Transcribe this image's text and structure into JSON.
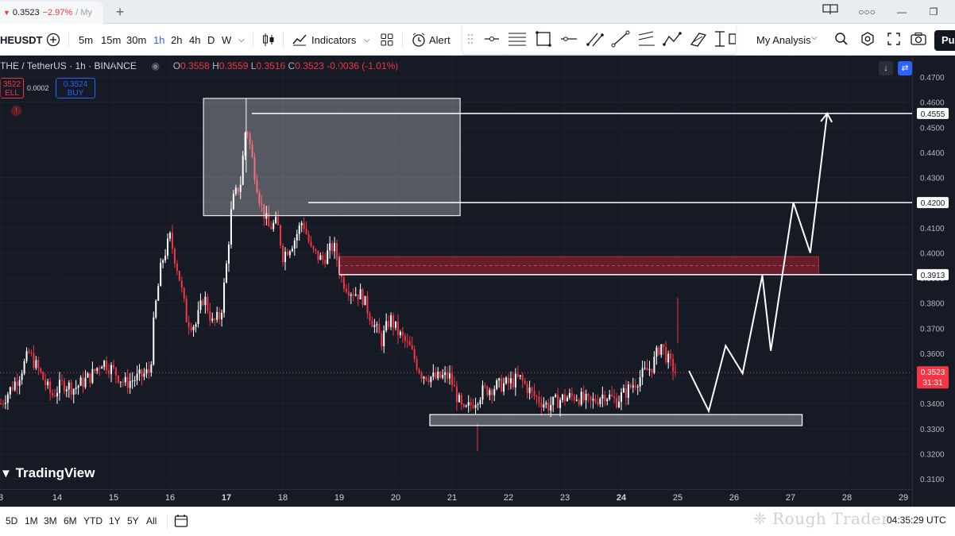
{
  "tab": {
    "arrow": "▼",
    "price": "0.3523",
    "change": "−2.97%",
    "rest": "/ My"
  },
  "toolbar": {
    "symbol": "HEUSDT",
    "intervals": [
      "5m",
      "15m",
      "30m",
      "1h",
      "2h",
      "4h",
      "D",
      "W"
    ],
    "indicators_label": "Indicators",
    "alert_label": "Alert",
    "layout_label": "My Analysis",
    "publish_label": "Pu"
  },
  "legend": {
    "pair": "THE / TetherUS · 1h · BINANCE",
    "o_label": "O",
    "o": "0.3558",
    "h_label": "H",
    "h": "0.3559",
    "l_label": "L",
    "l": "0.3516",
    "c_label": "C",
    "c": "0.3523",
    "change": "-0.0036 (-1.01%)"
  },
  "trade": {
    "sell_price": "3522",
    "sell_label": "ELL",
    "spread": "0.0002",
    "buy_price": "0.3524",
    "buy_label": "BUY"
  },
  "logo": "TradingView",
  "chart_data": {
    "type": "candlestick",
    "symbol": "THE / TetherUS",
    "interval": "1h",
    "exchange": "BINANCE",
    "y_ticks": [
      "0.4700",
      "0.4600",
      "0.4500",
      "0.4400",
      "0.4300",
      "0.4200",
      "0.4100",
      "0.4000",
      "0.3900",
      "0.3800",
      "0.3700",
      "0.3600",
      "0.3500",
      "0.3400",
      "0.3300",
      "0.3200",
      "0.3100"
    ],
    "ylim": [
      0.306,
      0.4745
    ],
    "x_ticks": [
      "3",
      "14",
      "15",
      "16",
      "17",
      "18",
      "19",
      "20",
      "21",
      "22",
      "23",
      "24",
      "25",
      "26",
      "27",
      "28",
      "29"
    ],
    "price_labels": [
      "0.4555",
      "0.4200",
      "0.3913"
    ],
    "current_price": "0.3523",
    "countdown": "31:31",
    "colors": {
      "up": "#ffffff",
      "down": "#f23645",
      "background": "#161a25",
      "zone": "#8b1f2e"
    },
    "close_path_points": [
      [
        13.0,
        0.34
      ],
      [
        13.3,
        0.35
      ],
      [
        13.5,
        0.36
      ],
      [
        13.7,
        0.352
      ],
      [
        13.9,
        0.343
      ],
      [
        14.1,
        0.348
      ],
      [
        14.3,
        0.346
      ],
      [
        14.6,
        0.351
      ],
      [
        14.8,
        0.357
      ],
      [
        15.0,
        0.353
      ],
      [
        15.2,
        0.348
      ],
      [
        15.5,
        0.351
      ],
      [
        15.65,
        0.353
      ],
      [
        15.72,
        0.375
      ],
      [
        15.85,
        0.396
      ],
      [
        16.0,
        0.406
      ],
      [
        16.15,
        0.392
      ],
      [
        16.3,
        0.373
      ],
      [
        16.45,
        0.371
      ],
      [
        16.6,
        0.383
      ],
      [
        16.75,
        0.372
      ],
      [
        16.9,
        0.375
      ],
      [
        17.0,
        0.395
      ],
      [
        17.1,
        0.42
      ],
      [
        17.25,
        0.428
      ],
      [
        17.35,
        0.452
      ],
      [
        17.45,
        0.438
      ],
      [
        17.6,
        0.42
      ],
      [
        17.75,
        0.41
      ],
      [
        17.9,
        0.412
      ],
      [
        18.0,
        0.399
      ],
      [
        18.2,
        0.405
      ],
      [
        18.35,
        0.413
      ],
      [
        18.5,
        0.401
      ],
      [
        18.7,
        0.397
      ],
      [
        18.9,
        0.403
      ],
      [
        19.05,
        0.389
      ],
      [
        19.2,
        0.385
      ],
      [
        19.4,
        0.383
      ],
      [
        19.6,
        0.372
      ],
      [
        19.75,
        0.365
      ],
      [
        19.9,
        0.374
      ],
      [
        20.05,
        0.368
      ],
      [
        20.25,
        0.362
      ],
      [
        20.45,
        0.352
      ],
      [
        20.7,
        0.35
      ],
      [
        20.95,
        0.351
      ],
      [
        21.2,
        0.336
      ],
      [
        21.35,
        0.34
      ],
      [
        21.55,
        0.345
      ],
      [
        21.8,
        0.347
      ],
      [
        22.0,
        0.348
      ],
      [
        22.2,
        0.35
      ],
      [
        22.45,
        0.343
      ],
      [
        22.7,
        0.339
      ],
      [
        22.95,
        0.342
      ],
      [
        23.2,
        0.343
      ],
      [
        23.45,
        0.34
      ],
      [
        23.7,
        0.344
      ],
      [
        23.9,
        0.341
      ],
      [
        24.1,
        0.345
      ],
      [
        24.35,
        0.351
      ],
      [
        24.55,
        0.355
      ],
      [
        24.7,
        0.364
      ],
      [
        24.85,
        0.356
      ],
      [
        25.0,
        0.352
      ]
    ],
    "annotations": {
      "supply_box": {
        "x": [
          16.6,
          21.15
        ],
        "y": [
          0.4148,
          0.4615
        ]
      },
      "demand_box": {
        "x": [
          21.0,
          27.6
        ],
        "y": [
          0.3312,
          0.3356
        ]
      },
      "red_zone": {
        "x": [
          19.0,
          27.5
        ],
        "y": [
          0.3913,
          0.3985
        ]
      },
      "level_0_4555": {
        "x_start": 17.45,
        "price": 0.4555
      },
      "level_0_4200": {
        "x_start": 18.45,
        "price": 0.42
      },
      "level_0_3913": {
        "x_start": 19.0,
        "price": 0.3913
      },
      "projection": [
        [
          25.2,
          0.353
        ],
        [
          25.55,
          0.337
        ],
        [
          25.85,
          0.363
        ],
        [
          26.15,
          0.352
        ],
        [
          26.5,
          0.391
        ],
        [
          26.65,
          0.361
        ],
        [
          27.05,
          0.42
        ],
        [
          27.35,
          0.4
        ],
        [
          27.65,
          0.4555
        ]
      ]
    }
  },
  "bottombar": {
    "ranges": [
      "5D",
      "1M",
      "3M",
      "6M",
      "YTD",
      "1Y",
      "5Y",
      "All"
    ],
    "clock": "04:35:29 UTC"
  },
  "watermark": "Rough Trader"
}
